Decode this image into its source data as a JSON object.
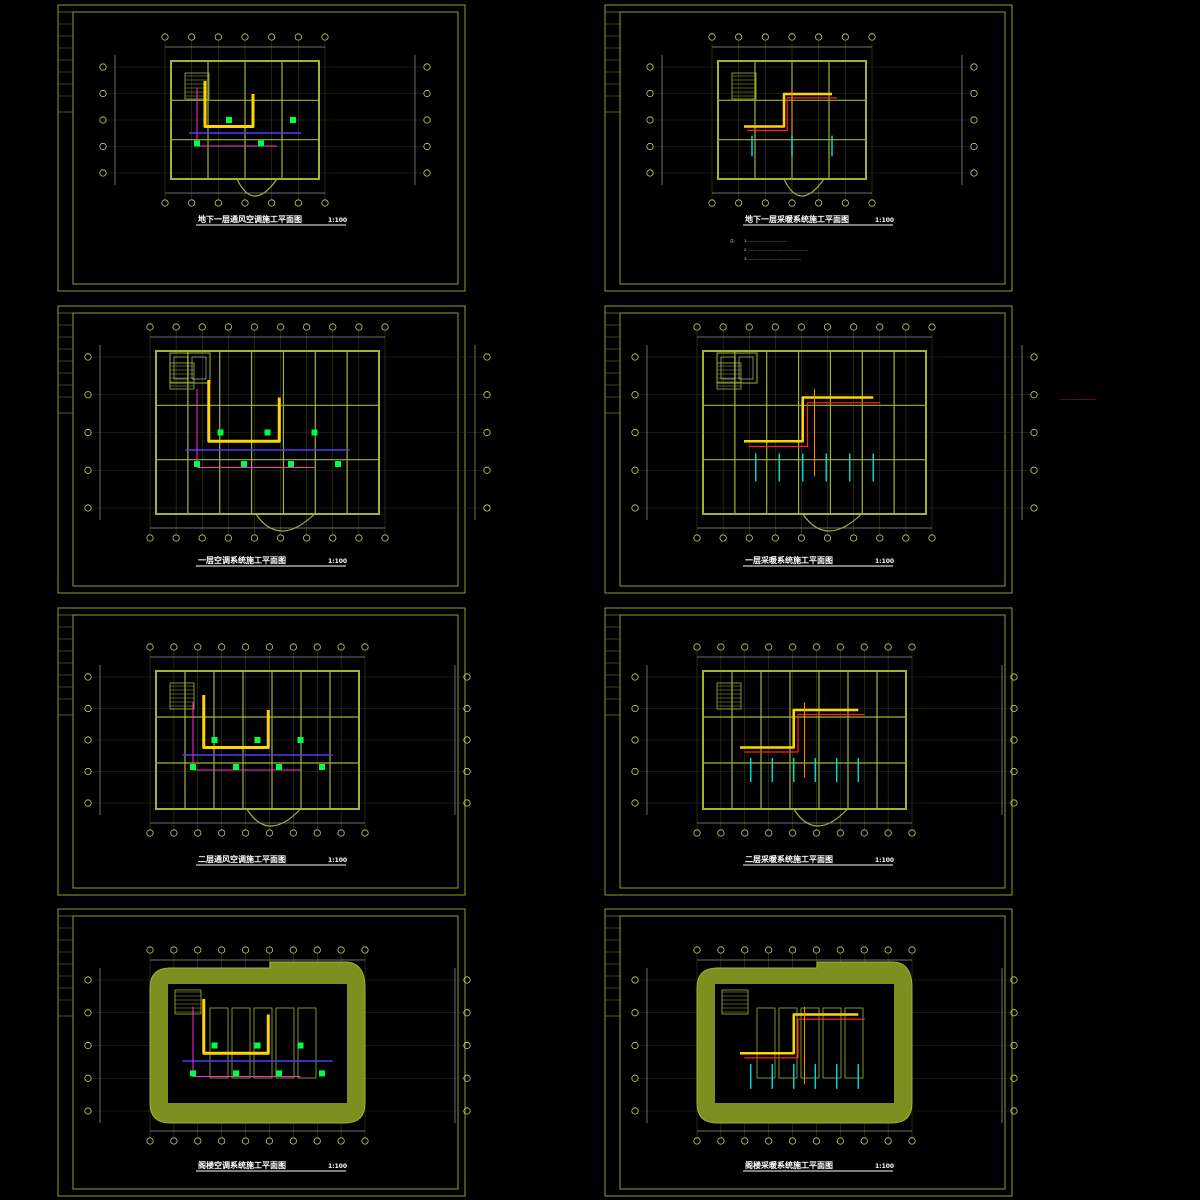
{
  "colors": {
    "background": "#000000",
    "frame": "#8ea026",
    "wall": "#9db33a",
    "axis": "#c8d070",
    "dim": "#d8d8d8",
    "duct_yellow": "#ffd400",
    "pipe_orange": "#ff8a00",
    "pipe_red": "#ff2020",
    "pipe_magenta": "#ff2dd6",
    "pipe_blue": "#4f3cff",
    "unit_green": "#00ff44",
    "riser_cyan": "#00e0e0",
    "text": "#ffffff"
  },
  "sheets": [
    {
      "id": "b1-ac",
      "title": "地下一层通风空调施工平面图",
      "scale": "1:100",
      "system": "ac"
    },
    {
      "id": "b1-heat",
      "title": "地下一层采暖系统施工平面图",
      "scale": "1:100",
      "system": "heat"
    },
    {
      "id": "f1-ac",
      "title": "一层空调系统施工平面图",
      "scale": "1:100",
      "system": "ac"
    },
    {
      "id": "f1-heat",
      "title": "一层采暖系统施工平面图",
      "scale": "1:100",
      "system": "heat"
    },
    {
      "id": "f2-ac",
      "title": "二层通风空调施工平面图",
      "scale": "1:100",
      "system": "ac"
    },
    {
      "id": "f2-heat",
      "title": "二层采暖系统施工平面图",
      "scale": "1:100",
      "system": "heat"
    },
    {
      "id": "roof-ac",
      "title": "阁楼空调系统施工平面图",
      "scale": "1:100",
      "system": "ac"
    },
    {
      "id": "roof-heat",
      "title": "阁楼采暖系统施工平面图",
      "scale": "1:100",
      "system": "heat"
    }
  ],
  "notes": {
    "label": "注：",
    "items": [
      "1.  ……………………………",
      "2.  ……………………………………………",
      "3.  ………………………………………"
    ]
  },
  "side_reference": "……………………………………………"
}
